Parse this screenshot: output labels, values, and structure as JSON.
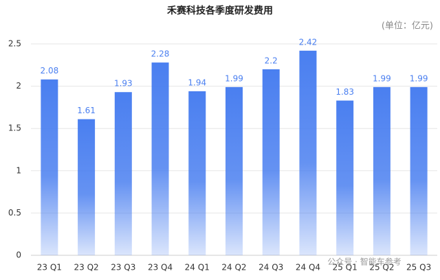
{
  "chart_data": {
    "type": "bar",
    "title": "禾赛科技各季度研发费用",
    "subtitle": "(单位：亿元)",
    "categories": [
      "23 Q1",
      "23 Q2",
      "23 Q3",
      "23 Q4",
      "24 Q1",
      "24 Q2",
      "24 Q3",
      "24 Q4",
      "25 Q1",
      "25 Q2",
      "25 Q3"
    ],
    "values": [
      2.08,
      1.61,
      1.93,
      2.28,
      1.94,
      1.99,
      2.2,
      2.42,
      1.83,
      1.99,
      1.99
    ],
    "color": "#4a7ff0",
    "ylim": [
      0,
      2.5
    ],
    "yticks": [
      0,
      0.5,
      1,
      1.5,
      2,
      2.5
    ],
    "grid": true,
    "watermark": "公众号 · 智能车参考"
  }
}
